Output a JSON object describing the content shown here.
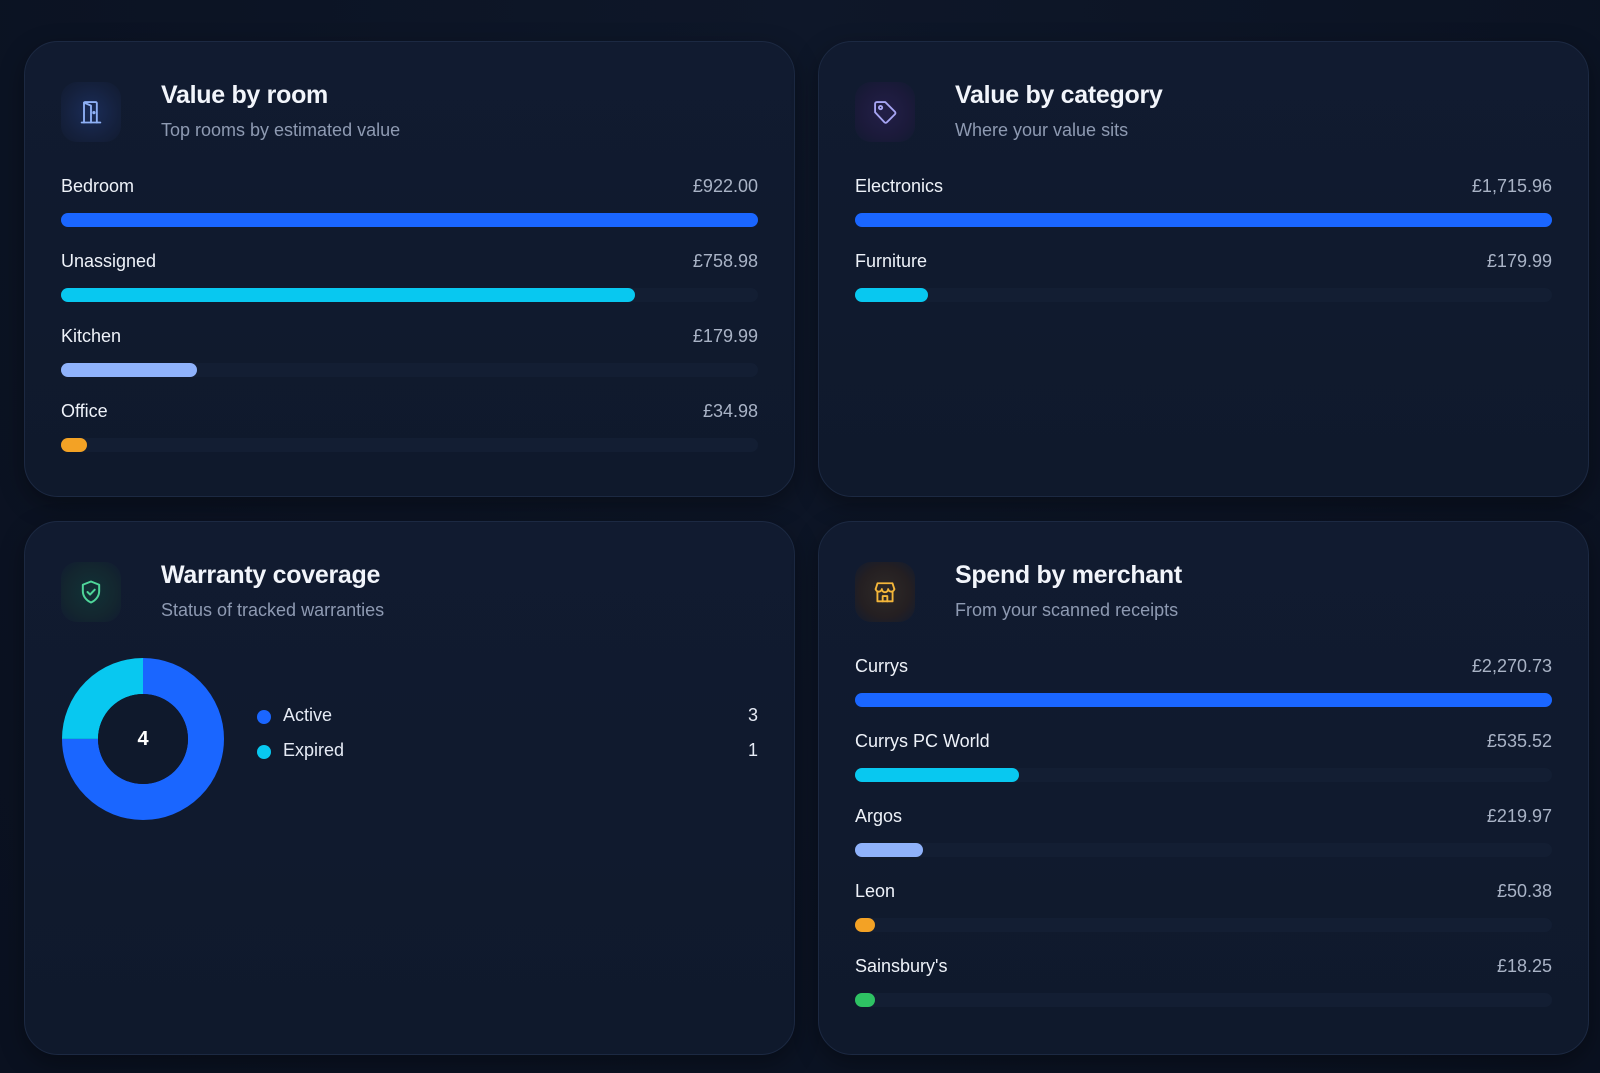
{
  "colors": {
    "blue": "#1a66ff",
    "cyan": "#08c8f0",
    "lavender": "#8fb2fb",
    "amber": "#f3a225",
    "green": "#2ec263"
  },
  "room_card": {
    "icon": "door-icon",
    "title": "Value by room",
    "subtitle": "Top rooms by estimated value",
    "items": [
      {
        "label": "Bedroom",
        "value": "£922.00",
        "fraction": 1.0,
        "color": "#1a66ff"
      },
      {
        "label": "Unassigned",
        "value": "£758.98",
        "fraction": 0.823,
        "color": "#08c8f0"
      },
      {
        "label": "Kitchen",
        "value": "£179.99",
        "fraction": 0.195,
        "color": "#8fb2fb"
      },
      {
        "label": "Office",
        "value": "£34.98",
        "fraction": 0.038,
        "color": "#f3a225"
      }
    ]
  },
  "category_card": {
    "icon": "tag-icon",
    "title": "Value by category",
    "subtitle": "Where your value sits",
    "items": [
      {
        "label": "Electronics",
        "value": "£1,715.96",
        "fraction": 1.0,
        "color": "#1a66ff"
      },
      {
        "label": "Furniture",
        "value": "£179.99",
        "fraction": 0.105,
        "color": "#08c8f0"
      }
    ]
  },
  "warranty_card": {
    "icon": "shield-check-icon",
    "title": "Warranty coverage",
    "subtitle": "Status of tracked warranties",
    "total": "4",
    "legend": [
      {
        "label": "Active",
        "count": "3",
        "value": 3,
        "color": "#1a66ff"
      },
      {
        "label": "Expired",
        "count": "1",
        "value": 1,
        "color": "#08c8f0"
      }
    ]
  },
  "merchant_card": {
    "icon": "store-icon",
    "title": "Spend by merchant",
    "subtitle": "From your scanned receipts",
    "items": [
      {
        "label": "Currys",
        "value": "£2,270.73",
        "fraction": 1.0,
        "color": "#1a66ff"
      },
      {
        "label": "Currys PC World",
        "value": "£535.52",
        "fraction": 0.236,
        "color": "#08c8f0"
      },
      {
        "label": "Argos",
        "value": "£219.97",
        "fraction": 0.097,
        "color": "#8fb2fb"
      },
      {
        "label": "Leon",
        "value": "£50.38",
        "fraction": 0.022,
        "color": "#f3a225"
      },
      {
        "label": "Sainsbury's",
        "value": "£18.25",
        "fraction": 0.008,
        "color": "#2ec263"
      }
    ]
  }
}
